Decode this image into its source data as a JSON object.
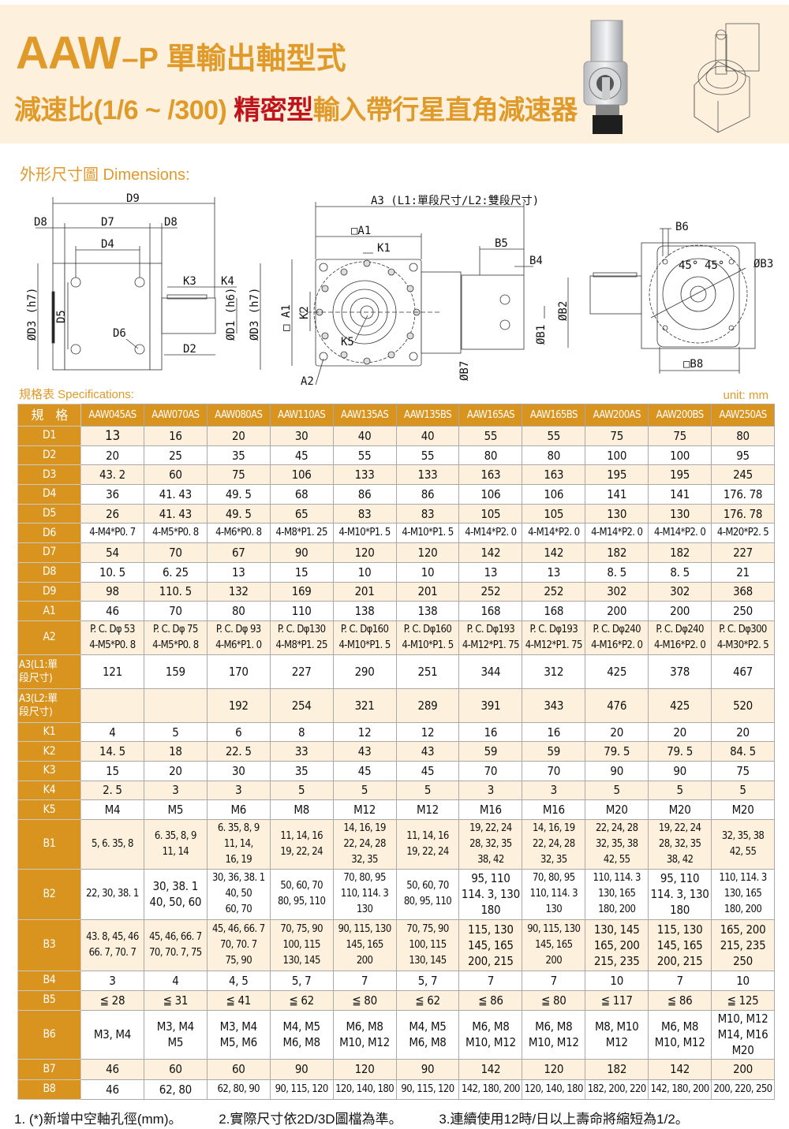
{
  "header": {
    "model": "AAW",
    "model_suffix": "–P 單輸出軸型式",
    "subtitle_prefix": "減速比(1/6 ~ /300) ",
    "subtitle_highlight": "精密型",
    "subtitle_suffix": "輸入帶行星直角減速器",
    "accent_color": "#e09a2a",
    "highlight_color": "#c0141c"
  },
  "dimensions_section": {
    "title": "外形尺寸圖 Dimensions:",
    "labels": {
      "d9": "D9",
      "d8a": "D8",
      "d7": "D7",
      "d8b": "D8",
      "d4": "D4",
      "k3": "K3",
      "k4": "K4",
      "d3a": "ØD3 (h7)",
      "d5": "D5",
      "d6": "D6",
      "d2": "D2",
      "d1": "ØD1 (h6)",
      "d3b": "ØD3 (h7)",
      "a3": "A3 (L1:單段尺寸/L2:雙段尺寸)",
      "a1_top": "□A1",
      "k1": "K1",
      "b5": "B5",
      "b4": "B4",
      "a1_side": "□ A1",
      "k2": "K2",
      "k5": "K5",
      "a2": "A2",
      "b7": "ØB7",
      "b1": "ØB1",
      "b2": "ØB2",
      "b6": "B6",
      "deg1": "45°",
      "deg2": "45°",
      "b3": "ØB3",
      "b8": "□B8"
    }
  },
  "specifications": {
    "title": "規格表 Specifications:",
    "unit": "unit: mm",
    "corner_label": "規　格",
    "models": [
      "AAW045AS",
      "AAW070AS",
      "AAW080AS",
      "AAW110AS",
      "AAW135AS",
      "AAW135BS",
      "AAW165AS",
      "AAW165BS",
      "AAW200AS",
      "AAW200BS",
      "AAW250AS"
    ],
    "rows": [
      {
        "label": "D1",
        "values": [
          "13",
          "16",
          "20",
          "30",
          "40",
          "40",
          "55",
          "55",
          "75",
          "75",
          "80"
        ]
      },
      {
        "label": "D2",
        "values": [
          "20",
          "25",
          "35",
          "45",
          "55",
          "55",
          "80",
          "80",
          "100",
          "100",
          "95"
        ]
      },
      {
        "label": "D3",
        "values": [
          "43. 2",
          "60",
          "75",
          "106",
          "133",
          "133",
          "163",
          "163",
          "195",
          "195",
          "245"
        ]
      },
      {
        "label": "D4",
        "values": [
          "36",
          "41. 43",
          "49. 5",
          "68",
          "86",
          "86",
          "106",
          "106",
          "141",
          "141",
          "176. 78"
        ]
      },
      {
        "label": "D5",
        "values": [
          "26",
          "41. 43",
          "49. 5",
          "65",
          "83",
          "83",
          "105",
          "105",
          "130",
          "130",
          "176. 78"
        ]
      },
      {
        "label": "D6",
        "values": [
          "4-M4*P0. 7",
          "4-M5*P0. 8",
          "4-M6*P0. 8",
          "4-M8*P1. 25",
          "4-M10*P1. 5",
          "4-M10*P1. 5",
          "4-M14*P2. 0",
          "4-M14*P2. 0",
          "4-M14*P2. 0",
          "4-M14*P2. 0",
          "4-M20*P2. 5"
        ]
      },
      {
        "label": "D7",
        "values": [
          "54",
          "70",
          "67",
          "90",
          "120",
          "120",
          "142",
          "142",
          "182",
          "182",
          "227"
        ]
      },
      {
        "label": "D8",
        "values": [
          "10. 5",
          "6. 25",
          "13",
          "15",
          "10",
          "10",
          "13",
          "13",
          "8. 5",
          "8. 5",
          "21"
        ]
      },
      {
        "label": "D9",
        "values": [
          "98",
          "110. 5",
          "132",
          "169",
          "201",
          "201",
          "252",
          "252",
          "302",
          "302",
          "368"
        ]
      },
      {
        "label": "A1",
        "values": [
          "46",
          "70",
          "80",
          "110",
          "138",
          "138",
          "168",
          "168",
          "200",
          "200",
          "250"
        ]
      },
      {
        "label": "A2",
        "values": [
          "P. C. Dφ 53\n4-M5*P0. 8",
          "P. C. Dφ 75\n4-M5*P0. 8",
          "P. C. Dφ 93\n4-M6*P1. 0",
          "P. C. Dφ130\n4-M8*P1. 25",
          "P. C. Dφ160\n4-M10*P1. 5",
          "P. C. Dφ160\n4-M10*P1. 5",
          "P. C. Dφ193\n4-M12*P1. 75",
          "P. C. Dφ193\n4-M12*P1. 75",
          "P. C. Dφ240\n4-M16*P2. 0",
          "P. C. Dφ240\n4-M16*P2. 0",
          "P. C. Dφ300\n4-M30*P2. 5"
        ]
      },
      {
        "label": "A3(L1:單\n段尺寸)",
        "values": [
          "121",
          "159",
          "170",
          "227",
          "290",
          "251",
          "344",
          "312",
          "425",
          "378",
          "467"
        ]
      },
      {
        "label": "A3(L2:單\n段尺寸)",
        "values": [
          "",
          "",
          "192",
          "254",
          "321",
          "289",
          "391",
          "343",
          "476",
          "425",
          "520"
        ]
      },
      {
        "label": "K1",
        "values": [
          "4",
          "5",
          "6",
          "8",
          "12",
          "12",
          "16",
          "16",
          "20",
          "20",
          "20"
        ]
      },
      {
        "label": "K2",
        "values": [
          "14. 5",
          "18",
          "22. 5",
          "33",
          "43",
          "43",
          "59",
          "59",
          "79. 5",
          "79. 5",
          "84. 5"
        ]
      },
      {
        "label": "K3",
        "values": [
          "15",
          "20",
          "30",
          "35",
          "45",
          "45",
          "70",
          "70",
          "90",
          "90",
          "75"
        ]
      },
      {
        "label": "K4",
        "values": [
          "2. 5",
          "3",
          "3",
          "5",
          "5",
          "5",
          "3",
          "3",
          "5",
          "5",
          "5"
        ]
      },
      {
        "label": "K5",
        "values": [
          "M4",
          "M5",
          "M6",
          "M8",
          "M12",
          "M12",
          "M16",
          "M16",
          "M20",
          "M20",
          "M20"
        ]
      },
      {
        "label": "B1",
        "values": [
          "5, 6. 35, 8",
          "6. 35, 8, 9\n11, 14",
          "6. 35, 8, 9\n11, 14,\n16, 19",
          "11, 14, 16\n19, 22, 24",
          "14, 16, 19\n22, 24, 28\n32, 35",
          "11, 14, 16\n19, 22, 24",
          "19, 22, 24\n28, 32, 35\n38, 42",
          "14, 16, 19\n22, 24, 28\n32, 35",
          "22, 24, 28\n32, 35, 38\n42, 55",
          "19, 22, 24\n28, 32, 35\n38, 42",
          "32, 35, 38\n42, 55"
        ]
      },
      {
        "label": "B2",
        "values": [
          "22, 30, 38. 1",
          "30, 38. 1\n40, 50, 60",
          "30, 36, 38. 1\n40, 50\n60, 70",
          "50, 60, 70\n80, 95, 110",
          "70, 80, 95\n110, 114. 3\n130",
          "50, 60, 70\n80, 95, 110",
          "95, 110\n114. 3, 130\n180",
          "70, 80, 95\n110, 114. 3\n130",
          "110, 114. 3\n130, 165\n180, 200",
          "95, 110\n114. 3, 130\n180",
          "110, 114. 3\n130, 165\n180, 200"
        ]
      },
      {
        "label": "B3",
        "values": [
          "43. 8, 45, 46\n66. 7, 70. 7",
          "45, 46, 66. 7\n70, 70. 7, 75",
          "45, 46, 66. 7\n70, 70. 7\n75, 90",
          "70, 75, 90\n100, 115\n130, 145",
          "90, 115, 130\n145, 165\n200",
          "70, 75, 90\n100, 115\n130, 145",
          "115, 130\n145, 165\n200, 215",
          "90, 115, 130\n145, 165\n200",
          "130, 145\n165, 200\n215, 235",
          "115, 130\n145, 165\n200, 215",
          "165, 200\n215, 235\n250"
        ]
      },
      {
        "label": "B4",
        "values": [
          "3",
          "4",
          "4, 5",
          "5, 7",
          "7",
          "5, 7",
          "7",
          "7",
          "10",
          "7",
          "10"
        ]
      },
      {
        "label": "B5",
        "values": [
          "≦ 28",
          "≦ 31",
          "≦ 41",
          "≦ 62",
          "≦ 80",
          "≦ 62",
          "≦ 86",
          "≦ 80",
          "≦ 117",
          "≦ 86",
          "≦ 125"
        ]
      },
      {
        "label": "B6",
        "values": [
          "M3, M4",
          "M3, M4\nM5",
          "M3, M4\nM5, M6",
          "M4, M5\nM6, M8",
          "M6, M8\nM10, M12",
          "M4, M5\nM6, M8",
          "M6, M8\nM10, M12",
          "M6, M8\nM10, M12",
          "M8, M10\nM12",
          "M6, M8\nM10, M12",
          "M10, M12\nM14, M16\nM20"
        ]
      },
      {
        "label": "B7",
        "values": [
          "46",
          "60",
          "60",
          "90",
          "120",
          "90",
          "142",
          "120",
          "182",
          "142",
          "200"
        ]
      },
      {
        "label": "B8",
        "values": [
          "46",
          "62, 80",
          "62, 80, 90",
          "90, 115, 120",
          "120, 140, 180",
          "90, 115, 120",
          "142, 180, 200",
          "120, 140, 180",
          "182, 200, 220",
          "142, 180, 200",
          "200, 220, 250"
        ]
      }
    ]
  },
  "notes": [
    "1. (*)新增中空軸孔徑(mm)。",
    "2.實際尺寸依2D/3D圖檔為準。",
    "3.連續使用12時/日以上壽命將縮短為1/2。"
  ]
}
